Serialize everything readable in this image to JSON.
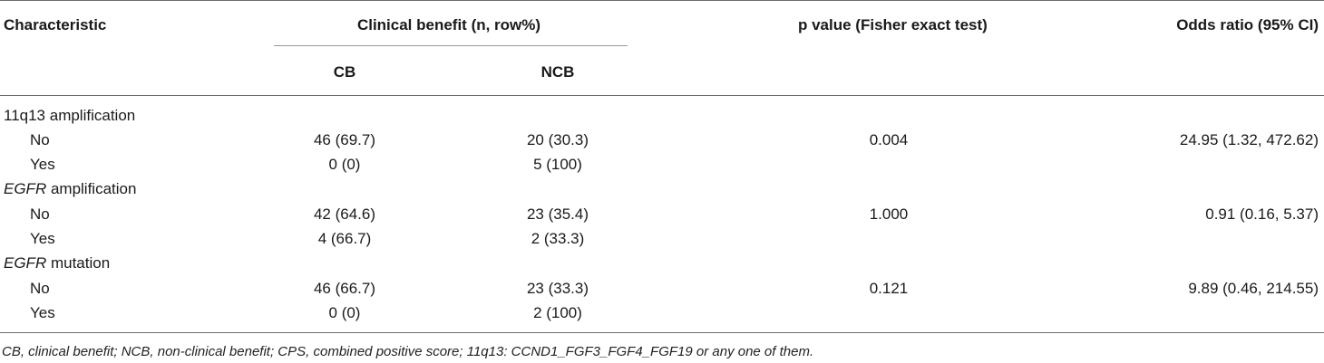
{
  "table": {
    "headers": {
      "characteristic": "Characteristic",
      "clinical_benefit": "Clinical benefit (n, row%)",
      "cb": "CB",
      "ncb": "NCB",
      "p_value": "p value (Fisher exact test)",
      "odds_ratio": "Odds ratio (95% CI)"
    },
    "groups": [
      {
        "label_italic": "",
        "label_rest": "11q13 amplification",
        "rows": [
          {
            "label": "No",
            "cb": "46 (69.7)",
            "ncb": "20 (30.3)",
            "p": "0.004",
            "or": "24.95 (1.32, 472.62)"
          },
          {
            "label": "Yes",
            "cb": "0 (0)",
            "ncb": "5 (100)",
            "p": "",
            "or": ""
          }
        ]
      },
      {
        "label_italic": "EGFR",
        "label_rest": " amplification",
        "rows": [
          {
            "label": "No",
            "cb": "42 (64.6)",
            "ncb": "23 (35.4)",
            "p": "1.000",
            "or": "0.91 (0.16, 5.37)"
          },
          {
            "label": "Yes",
            "cb": "4 (66.7)",
            "ncb": "2 (33.3)",
            "p": "",
            "or": ""
          }
        ]
      },
      {
        "label_italic": "EGFR",
        "label_rest": " mutation",
        "rows": [
          {
            "label": "No",
            "cb": "46 (66.7)",
            "ncb": "23 (33.3)",
            "p": "0.121",
            "or": "9.89 (0.46, 214.55)"
          },
          {
            "label": "Yes",
            "cb": "0 (0)",
            "ncb": "2 (100)",
            "p": "",
            "or": ""
          }
        ]
      }
    ],
    "footnote": "CB, clinical benefit; NCB, non-clinical benefit; CPS, combined positive score; 11q13: CCND1_FGF3_FGF4_FGF19 or any one of them."
  }
}
